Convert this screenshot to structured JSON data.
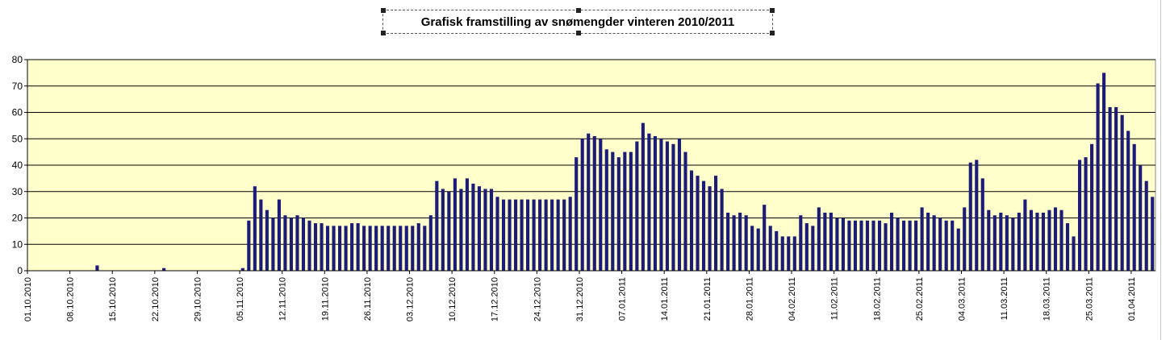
{
  "colors": {
    "plot_bg": "#ffffcc",
    "bar": "#1c1c78",
    "grid": "#000000"
  },
  "chart_data": {
    "type": "bar",
    "title": "Grafisk framstilling av snømengder vinteren 2010/2011",
    "xlabel": "",
    "ylabel": "",
    "ylim": [
      0,
      80
    ],
    "yticks": [
      0,
      10,
      20,
      30,
      40,
      50,
      60,
      70,
      80
    ],
    "grid": true,
    "legend": "none",
    "x_tick_labels": [
      "01.10.2010",
      "08.10.2010",
      "15.10.2010",
      "22.10.2010",
      "29.10.2010",
      "05.11.2010",
      "12.11.2010",
      "19.11.2010",
      "26.11.2010",
      "03.12.2010",
      "10.12.2010",
      "17.12.2010",
      "24.12.2010",
      "31.12.2010",
      "07.01.2011",
      "14.01.2011",
      "21.01.2011",
      "28.01.2011",
      "04.02.2011",
      "11.02.2011",
      "18.02.2011",
      "25.02.2011",
      "04.03.2011",
      "11.03.2011",
      "18.03.2011",
      "25.03.2011",
      "01.04.2011"
    ],
    "points": [
      [
        "12.10.2010",
        2
      ],
      [
        "23.10.2010",
        1
      ],
      [
        "05.11.2010",
        1
      ],
      [
        "06.11.2010",
        19
      ],
      [
        "07.11.2010",
        32
      ],
      [
        "08.11.2010",
        27
      ],
      [
        "09.11.2010",
        23
      ],
      [
        "10.11.2010",
        20
      ],
      [
        "11.11.2010",
        27
      ],
      [
        "12.11.2010",
        21
      ],
      [
        "13.11.2010",
        20
      ],
      [
        "14.11.2010",
        21
      ],
      [
        "15.11.2010",
        20
      ],
      [
        "16.11.2010",
        19
      ],
      [
        "17.11.2010",
        18
      ],
      [
        "18.11.2010",
        18
      ],
      [
        "19.11.2010",
        17
      ],
      [
        "20.11.2010",
        17
      ],
      [
        "21.11.2010",
        17
      ],
      [
        "22.11.2010",
        17
      ],
      [
        "23.11.2010",
        18
      ],
      [
        "24.11.2010",
        18
      ],
      [
        "25.11.2010",
        17
      ],
      [
        "26.11.2010",
        17
      ],
      [
        "27.11.2010",
        17
      ],
      [
        "28.11.2010",
        17
      ],
      [
        "29.11.2010",
        17
      ],
      [
        "30.11.2010",
        17
      ],
      [
        "01.12.2010",
        17
      ],
      [
        "02.12.2010",
        17
      ],
      [
        "03.12.2010",
        17
      ],
      [
        "04.12.2010",
        18
      ],
      [
        "05.12.2010",
        17
      ],
      [
        "06.12.2010",
        21
      ],
      [
        "07.12.2010",
        34
      ],
      [
        "08.12.2010",
        31
      ],
      [
        "09.12.2010",
        30
      ],
      [
        "10.12.2010",
        35
      ],
      [
        "11.12.2010",
        31
      ],
      [
        "12.12.2010",
        35
      ],
      [
        "13.12.2010",
        33
      ],
      [
        "14.12.2010",
        32
      ],
      [
        "15.12.2010",
        31
      ],
      [
        "16.12.2010",
        31
      ],
      [
        "17.12.2010",
        28
      ],
      [
        "18.12.2010",
        27
      ],
      [
        "19.12.2010",
        27
      ],
      [
        "20.12.2010",
        27
      ],
      [
        "21.12.2010",
        27
      ],
      [
        "22.12.2010",
        27
      ],
      [
        "23.12.2010",
        27
      ],
      [
        "24.12.2010",
        27
      ],
      [
        "25.12.2010",
        27
      ],
      [
        "26.12.2010",
        27
      ],
      [
        "27.12.2010",
        27
      ],
      [
        "28.12.2010",
        27
      ],
      [
        "29.12.2010",
        28
      ],
      [
        "30.12.2010",
        43
      ],
      [
        "31.12.2010",
        50
      ],
      [
        "01.01.2011",
        52
      ],
      [
        "02.01.2011",
        51
      ],
      [
        "03.01.2011",
        50
      ],
      [
        "04.01.2011",
        46
      ],
      [
        "05.01.2011",
        45
      ],
      [
        "06.01.2011",
        43
      ],
      [
        "07.01.2011",
        45
      ],
      [
        "08.01.2011",
        45
      ],
      [
        "09.01.2011",
        49
      ],
      [
        "10.01.2011",
        56
      ],
      [
        "11.01.2011",
        52
      ],
      [
        "12.01.2011",
        51
      ],
      [
        "13.01.2011",
        50
      ],
      [
        "14.01.2011",
        49
      ],
      [
        "15.01.2011",
        48
      ],
      [
        "16.01.2011",
        50
      ],
      [
        "17.01.2011",
        45
      ],
      [
        "18.01.2011",
        38
      ],
      [
        "19.01.2011",
        36
      ],
      [
        "20.01.2011",
        34
      ],
      [
        "21.01.2011",
        32
      ],
      [
        "22.01.2011",
        36
      ],
      [
        "23.01.2011",
        31
      ],
      [
        "24.01.2011",
        22
      ],
      [
        "25.01.2011",
        21
      ],
      [
        "26.01.2011",
        22
      ],
      [
        "27.01.2011",
        21
      ],
      [
        "28.01.2011",
        17
      ],
      [
        "29.01.2011",
        16
      ],
      [
        "30.01.2011",
        25
      ],
      [
        "31.01.2011",
        17
      ],
      [
        "01.02.2011",
        15
      ],
      [
        "02.02.2011",
        13
      ],
      [
        "03.02.2011",
        13
      ],
      [
        "04.02.2011",
        13
      ],
      [
        "05.02.2011",
        21
      ],
      [
        "06.02.2011",
        18
      ],
      [
        "07.02.2011",
        17
      ],
      [
        "08.02.2011",
        24
      ],
      [
        "09.02.2011",
        22
      ],
      [
        "10.02.2011",
        22
      ],
      [
        "11.02.2011",
        20
      ],
      [
        "12.02.2011",
        20
      ],
      [
        "13.02.2011",
        19
      ],
      [
        "14.02.2011",
        19
      ],
      [
        "15.02.2011",
        19
      ],
      [
        "16.02.2011",
        19
      ],
      [
        "17.02.2011",
        19
      ],
      [
        "18.02.2011",
        19
      ],
      [
        "19.02.2011",
        18
      ],
      [
        "20.02.2011",
        22
      ],
      [
        "21.02.2011",
        20
      ],
      [
        "22.02.2011",
        19
      ],
      [
        "23.02.2011",
        19
      ],
      [
        "24.02.2011",
        19
      ],
      [
        "25.02.2011",
        24
      ],
      [
        "26.02.2011",
        22
      ],
      [
        "27.02.2011",
        21
      ],
      [
        "28.02.2011",
        20
      ],
      [
        "01.03.2011",
        19
      ],
      [
        "02.03.2011",
        19
      ],
      [
        "03.03.2011",
        16
      ],
      [
        "04.03.2011",
        24
      ],
      [
        "05.03.2011",
        41
      ],
      [
        "06.03.2011",
        42
      ],
      [
        "07.03.2011",
        35
      ],
      [
        "08.03.2011",
        23
      ],
      [
        "09.03.2011",
        21
      ],
      [
        "10.03.2011",
        22
      ],
      [
        "11.03.2011",
        21
      ],
      [
        "12.03.2011",
        20
      ],
      [
        "13.03.2011",
        22
      ],
      [
        "14.03.2011",
        27
      ],
      [
        "15.03.2011",
        23
      ],
      [
        "16.03.2011",
        22
      ],
      [
        "17.03.2011",
        22
      ],
      [
        "18.03.2011",
        23
      ],
      [
        "19.03.2011",
        24
      ],
      [
        "20.03.2011",
        23
      ],
      [
        "21.03.2011",
        18
      ],
      [
        "22.03.2011",
        13
      ],
      [
        "23.03.2011",
        42
      ],
      [
        "24.03.2011",
        43
      ],
      [
        "25.03.2011",
        48
      ],
      [
        "26.03.2011",
        71
      ],
      [
        "27.03.2011",
        75
      ],
      [
        "28.03.2011",
        62
      ],
      [
        "29.03.2011",
        62
      ],
      [
        "30.03.2011",
        59
      ],
      [
        "31.03.2011",
        53
      ],
      [
        "01.04.2011",
        48
      ],
      [
        "02.04.2011",
        40
      ],
      [
        "03.04.2011",
        34
      ],
      [
        "04.04.2011",
        28
      ]
    ]
  }
}
